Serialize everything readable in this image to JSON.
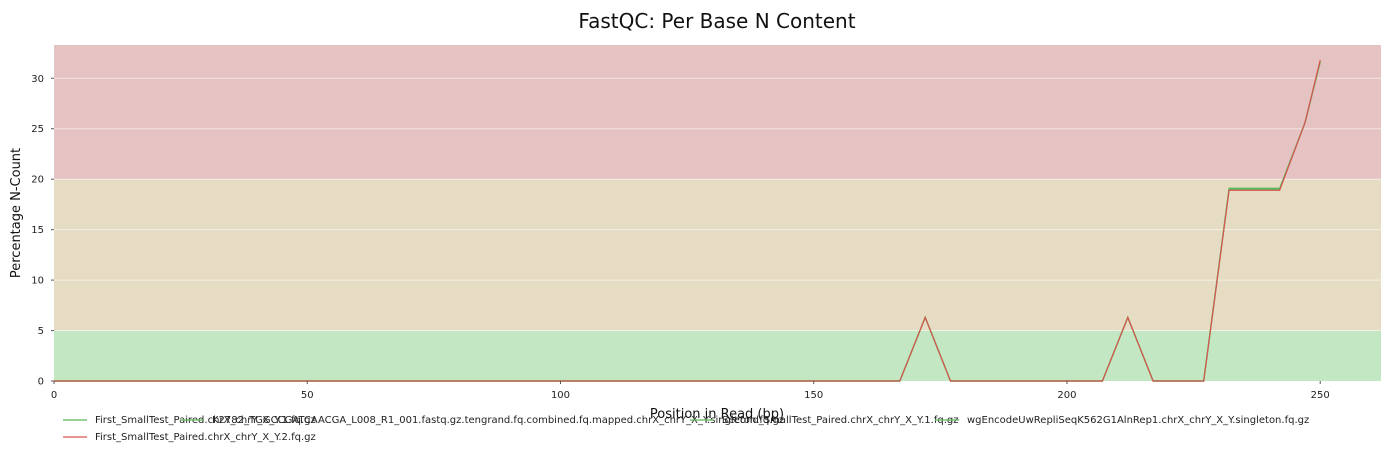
{
  "chart_data": {
    "type": "line",
    "title": "FastQC: Per Base N Content",
    "xlabel": "Position in Read (bp)",
    "ylabel": "Percentage N-Count",
    "xlim": [
      0,
      262
    ],
    "ylim": [
      0,
      33.3
    ],
    "xticks": [
      0,
      50,
      100,
      150,
      200,
      250
    ],
    "yticks": [
      0,
      5,
      10,
      15,
      20,
      25,
      30
    ],
    "grid": true,
    "legend_position": "bottom-left",
    "bands": [
      {
        "from": 0,
        "to": 5,
        "color": "#c3e6c3"
      },
      {
        "from": 5,
        "to": 20,
        "color": "#e6dcc3"
      },
      {
        "from": 20,
        "to": 33.3,
        "color": "#e6c3c3"
      }
    ],
    "series": [
      {
        "name": "First_SmallTest_Paired.chrX_chrY_X_Y.1.fq.gz",
        "color": "#5cb85c",
        "points": [
          [
            0,
            0
          ],
          [
            167,
            0
          ],
          [
            172,
            6.3
          ],
          [
            177,
            0
          ],
          [
            207,
            0
          ],
          [
            212,
            6.3
          ],
          [
            217,
            0
          ],
          [
            227,
            0
          ],
          [
            232,
            19.1
          ],
          [
            242,
            19.1
          ],
          [
            247,
            25.6
          ],
          [
            250,
            31.6
          ]
        ]
      },
      {
        "name": "K2782_TGGCCGATCAACGA_L008_R1_001.fastq.gz.tengrand.fq.combined.fq.mapped.chrX_chrY_X_Y.singleton.fq.gz",
        "color": "#5cb85c",
        "points": [
          [
            0,
            0
          ],
          [
            167,
            0
          ],
          [
            172,
            6.3
          ],
          [
            177,
            0
          ],
          [
            207,
            0
          ],
          [
            212,
            6.3
          ],
          [
            217,
            0
          ],
          [
            227,
            0
          ],
          [
            232,
            19.0
          ],
          [
            242,
            19.0
          ],
          [
            247,
            25.6
          ],
          [
            250,
            31.7
          ]
        ]
      },
      {
        "name": "Second_SmallTest_Paired.chrX_chrY_X_Y.1.fq.gz",
        "color": "#5cb85c",
        "points": [
          [
            0,
            0
          ],
          [
            167,
            0
          ],
          [
            172,
            6.3
          ],
          [
            177,
            0
          ],
          [
            207,
            0
          ],
          [
            212,
            6.3
          ],
          [
            217,
            0
          ],
          [
            227,
            0
          ],
          [
            232,
            19.1
          ],
          [
            242,
            19.1
          ],
          [
            247,
            25.6
          ],
          [
            250,
            31.6
          ]
        ]
      },
      {
        "name": "wgEncodeUwRepliSeqK562G1AlnRep1.chrX_chrY_X_Y.singleton.fq.gz",
        "color": "#5cb85c",
        "points": [
          [
            0,
            0
          ],
          [
            167,
            0
          ],
          [
            172,
            6.3
          ],
          [
            177,
            0
          ],
          [
            207,
            0
          ],
          [
            212,
            6.3
          ],
          [
            217,
            0
          ],
          [
            227,
            0
          ],
          [
            232,
            19.0
          ],
          [
            242,
            19.0
          ],
          [
            247,
            25.6
          ],
          [
            250,
            31.7
          ]
        ]
      },
      {
        "name": "First_SmallTest_Paired.chrX_chrY_X_Y.2.fq.gz",
        "color": "#d9534f",
        "points": [
          [
            0,
            0
          ],
          [
            167,
            0
          ],
          [
            172,
            6.3
          ],
          [
            177,
            0
          ],
          [
            207,
            0
          ],
          [
            212,
            6.3
          ],
          [
            217,
            0
          ],
          [
            227,
            0
          ],
          [
            232,
            18.9
          ],
          [
            242,
            18.9
          ],
          [
            247,
            25.6
          ],
          [
            250,
            31.8
          ]
        ]
      }
    ]
  }
}
